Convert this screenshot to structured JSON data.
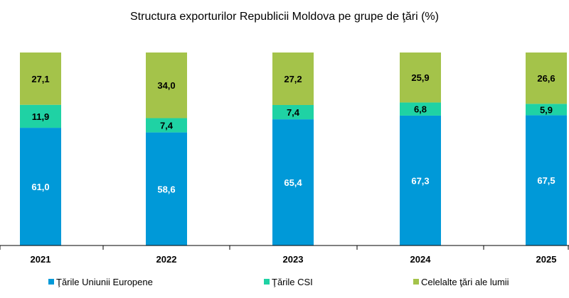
{
  "chart_data": {
    "type": "bar",
    "stacked": true,
    "title": "Structura exporturilor Republicii Moldova pe grupe de ţări (%)",
    "categories": [
      "2021",
      "2022",
      "2023",
      "2024",
      "2025"
    ],
    "series": [
      {
        "name": "Ţările Uniunii Europene",
        "color": "#0099d8",
        "label_color": "#ffffff",
        "values": [
          61.0,
          58.6,
          65.4,
          67.3,
          67.5
        ],
        "labels": [
          "61,0",
          "58,6",
          "65,4",
          "67,3",
          "67,5"
        ]
      },
      {
        "name": "Ţările CSI",
        "color": "#1fd2a4",
        "label_color": "#000000",
        "values": [
          11.9,
          7.4,
          7.4,
          6.8,
          5.9
        ],
        "labels": [
          "11,9",
          "7,4",
          "7,4",
          "6,8",
          "5,9"
        ]
      },
      {
        "name": "Celelalte ţări ale lumii",
        "color": "#a4c34a",
        "label_color": "#000000",
        "values": [
          27.1,
          34.0,
          27.2,
          25.9,
          26.6
        ],
        "labels": [
          "27,1",
          "34,0",
          "27,2",
          "25,9",
          "26,6"
        ]
      }
    ],
    "ylim": [
      0,
      100
    ],
    "grid": false,
    "legend": "bottom"
  }
}
